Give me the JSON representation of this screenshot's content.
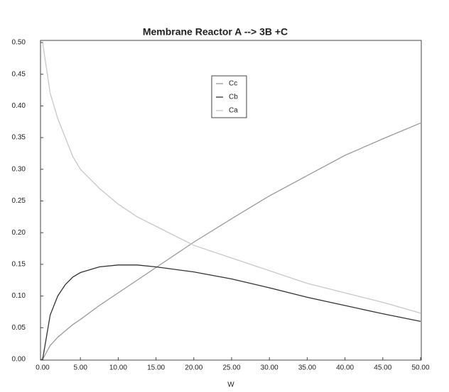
{
  "chart_data": {
    "type": "line",
    "title": "Membrane Reactor   A --> 3B +C",
    "x_label": "W",
    "x": [
      0,
      1,
      2,
      3,
      4,
      5,
      7.5,
      10,
      12.5,
      15,
      20,
      25,
      30,
      35,
      40,
      45,
      50
    ],
    "series": [
      {
        "name": "Cc",
        "color": "#9a9a9a",
        "values": [
          0,
          0.022,
          0.035,
          0.045,
          0.055,
          0.063,
          0.085,
          0.105,
          0.125,
          0.145,
          0.185,
          0.222,
          0.258,
          0.29,
          0.322,
          0.348,
          0.373
        ]
      },
      {
        "name": "Cb",
        "color": "#333333",
        "values": [
          0,
          0.07,
          0.1,
          0.118,
          0.13,
          0.137,
          0.146,
          0.149,
          0.149,
          0.146,
          0.138,
          0.127,
          0.113,
          0.098,
          0.085,
          0.072,
          0.06
        ]
      },
      {
        "name": "Ca",
        "color": "#c8c8c8",
        "values": [
          0.5,
          0.42,
          0.38,
          0.35,
          0.32,
          0.3,
          0.27,
          0.245,
          0.225,
          0.21,
          0.18,
          0.16,
          0.14,
          0.12,
          0.105,
          0.09,
          0.073
        ]
      }
    ],
    "xlim": [
      0,
      50
    ],
    "ylim": [
      0,
      0.5
    ],
    "xticks": [
      {
        "value": 0,
        "label": "0.00"
      },
      {
        "value": 5,
        "label": "5.00"
      },
      {
        "value": 10,
        "label": "10.00"
      },
      {
        "value": 15,
        "label": "15.00"
      },
      {
        "value": 20,
        "label": "20.00"
      },
      {
        "value": 25,
        "label": "25.00"
      },
      {
        "value": 30,
        "label": "30.00"
      },
      {
        "value": 35,
        "label": "35.00"
      },
      {
        "value": 40,
        "label": "40.00"
      },
      {
        "value": 45,
        "label": "45.00"
      },
      {
        "value": 50,
        "label": "50.00"
      }
    ],
    "yticks": [
      {
        "value": 0,
        "label": "0.00"
      },
      0.05,
      {
        "value": 0.1,
        "label": "0.10"
      },
      0.15,
      {
        "value": 0.2,
        "label": "0.20"
      },
      0.25,
      {
        "value": 0.3,
        "label": "0.30"
      },
      0.35,
      {
        "value": 0.4,
        "label": "0.40"
      },
      0.45,
      {
        "value": 0.5,
        "label": "0.50"
      }
    ],
    "grid": false
  }
}
